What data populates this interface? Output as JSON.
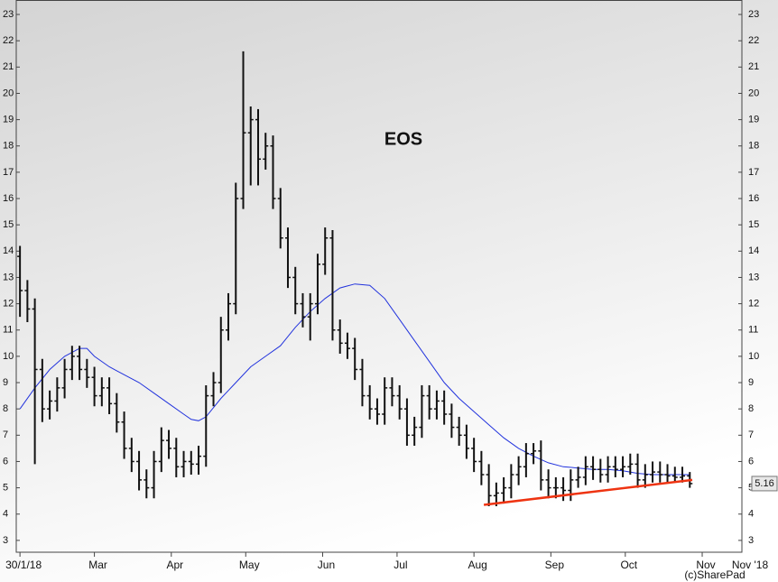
{
  "chart_data": {
    "type": "ohlc",
    "title": "EOS",
    "color": "#111111",
    "x": [
      0,
      3,
      6,
      9,
      12,
      15,
      18,
      21,
      24,
      27,
      30,
      33,
      36,
      39,
      42,
      45,
      48,
      51,
      54,
      57,
      60,
      63,
      66,
      69,
      72,
      75,
      78,
      81,
      84,
      87,
      90,
      93,
      96,
      99,
      102,
      105,
      108,
      111,
      114,
      117,
      120,
      123,
      126,
      129,
      132,
      135,
      138,
      141,
      144,
      147,
      150,
      153,
      156,
      159,
      162,
      165,
      168,
      171,
      174,
      177,
      180,
      183,
      186,
      189,
      192,
      195,
      198,
      201,
      204,
      207,
      210,
      213,
      216,
      219,
      222,
      225,
      228,
      231,
      234,
      237,
      240,
      243,
      246,
      249,
      252,
      255,
      258,
      261,
      264,
      267,
      270
    ],
    "open": [
      13.8,
      12.5,
      11.8,
      9.5,
      8,
      8.3,
      8.8,
      9.5,
      10,
      9.5,
      9.2,
      8.5,
      8.8,
      8.2,
      7.5,
      6.5,
      6,
      5.3,
      5,
      6,
      6.8,
      6.5,
      5.8,
      6,
      5.9,
      6.2,
      8.5,
      9,
      11,
      12,
      16,
      18.5,
      19,
      17.5,
      18,
      16,
      14.5,
      13,
      12,
      11.5,
      12,
      13.5,
      14.5,
      11,
      10.5,
      10.3,
      9.5,
      8.5,
      8,
      7.8,
      8.8,
      8.5,
      8,
      7,
      7.3,
      8.5,
      8,
      8.3,
      7.8,
      7.3,
      7,
      6.5,
      6,
      5.5,
      4.7,
      4.8,
      5,
      5.5,
      5.8,
      6.3,
      6.4,
      5.3,
      5,
      5,
      4.9,
      5.3,
      5.4,
      5.8,
      5.7,
      5.5,
      5.8,
      5.7,
      5.8,
      5.9,
      5.3,
      5.5,
      5.6,
      5.5,
      5.45,
      5.4,
      5.45
    ],
    "high": [
      14.2,
      12.9,
      12.2,
      9.9,
      8.7,
      9.2,
      9.9,
      10.4,
      10.4,
      9.9,
      9.6,
      9.2,
      9.2,
      8.6,
      7.9,
      6.9,
      6.4,
      5.7,
      6.4,
      7.3,
      7.2,
      6.9,
      6.4,
      6.4,
      6.6,
      8.9,
      9.4,
      11.5,
      12.4,
      16.6,
      21.6,
      19.5,
      19.4,
      18.5,
      18.4,
      16.4,
      14.9,
      13.4,
      12.4,
      12.4,
      13.9,
      14.9,
      14.8,
      11.4,
      10.9,
      10.7,
      9.9,
      8.9,
      8.4,
      9.2,
      9.2,
      8.9,
      8.4,
      7.7,
      8.9,
      8.9,
      8.7,
      8.7,
      8.2,
      7.7,
      7.4,
      6.9,
      6.4,
      5.9,
      5.2,
      5.4,
      5.9,
      6.2,
      6.7,
      6.7,
      6.8,
      5.7,
      5.4,
      5.4,
      5.7,
      5.8,
      6.2,
      6.2,
      6.1,
      6.2,
      6.2,
      6.2,
      6.3,
      6.3,
      5.9,
      6.0,
      6.0,
      5.9,
      5.8,
      5.8,
      5.6
    ],
    "low": [
      11.5,
      11.3,
      5.9,
      7.5,
      7.6,
      7.9,
      8.4,
      9.1,
      9.1,
      8.8,
      8.1,
      8.1,
      7.8,
      7.1,
      6.1,
      5.6,
      4.9,
      4.6,
      4.6,
      5.6,
      6.1,
      5.4,
      5.4,
      5.5,
      5.5,
      5.8,
      8.1,
      8.6,
      10.6,
      11.6,
      15.6,
      16.5,
      16.5,
      17.1,
      15.6,
      14.1,
      12.6,
      11.6,
      11.1,
      10.6,
      11.6,
      13.1,
      10.6,
      10.1,
      9.9,
      9.1,
      8.1,
      7.6,
      7.4,
      7.4,
      8.1,
      7.6,
      6.6,
      6.6,
      6.9,
      7.6,
      7.6,
      7.4,
      6.9,
      6.6,
      6.1,
      5.6,
      5.1,
      4.3,
      4.3,
      4.4,
      4.6,
      5.1,
      5.4,
      5.9,
      4.9,
      4.6,
      4.6,
      4.5,
      4.5,
      5.0,
      5.1,
      5.3,
      5.2,
      5.2,
      5.4,
      5.4,
      5.5,
      5.0,
      5.0,
      5.2,
      5.2,
      5.2,
      5.2,
      5.2,
      5.0
    ],
    "close": [
      12.5,
      11.8,
      9.5,
      8,
      8.3,
      8.8,
      9.5,
      10,
      9.5,
      9.2,
      8.5,
      8.8,
      8.2,
      7.5,
      6.5,
      6,
      5.3,
      5,
      6,
      6.8,
      6.5,
      5.8,
      6,
      5.9,
      6.2,
      8.5,
      9,
      11,
      12,
      16,
      18.5,
      19,
      17.5,
      18,
      16,
      14.5,
      13,
      12,
      11.5,
      12,
      13.5,
      14.5,
      11,
      10.5,
      10.3,
      9.5,
      8.5,
      8,
      7.8,
      8.8,
      8.5,
      8,
      7,
      7.3,
      8.5,
      8,
      8.3,
      7.8,
      7.3,
      7,
      6.5,
      6,
      5.5,
      4.7,
      4.8,
      5,
      5.5,
      5.8,
      6.3,
      6.4,
      5.3,
      5,
      5,
      4.9,
      5.3,
      5.4,
      5.8,
      5.7,
      5.5,
      5.8,
      5.7,
      5.8,
      5.9,
      5.3,
      5.5,
      5.6,
      5.5,
      5.45,
      5.4,
      5.45,
      5.16
    ],
    "moving_average": {
      "color": "#2233dd",
      "x": [
        0,
        6,
        12,
        18,
        24,
        27,
        30,
        36,
        42,
        48,
        54,
        60,
        66,
        69,
        72,
        75,
        81,
        87,
        93,
        99,
        105,
        111,
        117,
        123,
        129,
        135,
        141,
        147,
        153,
        159,
        165,
        171,
        177,
        183,
        189,
        195,
        201,
        207,
        213,
        219,
        225,
        231,
        237,
        243,
        249,
        255,
        261,
        267,
        270
      ],
      "values": [
        8,
        8.8,
        9.5,
        10,
        10.3,
        10.3,
        10,
        9.6,
        9.3,
        9,
        8.6,
        8.2,
        7.8,
        7.6,
        7.55,
        7.7,
        8.4,
        9,
        9.6,
        10,
        10.4,
        11.1,
        11.7,
        12.2,
        12.6,
        12.75,
        12.7,
        12.2,
        11.4,
        10.6,
        9.8,
        9.0,
        8.4,
        7.9,
        7.4,
        6.9,
        6.5,
        6.2,
        5.95,
        5.8,
        5.75,
        5.7,
        5.7,
        5.65,
        5.55,
        5.5,
        5.5,
        5.5,
        5.5
      ]
    },
    "trendline": {
      "color": "#ee3311",
      "x": [
        187,
        271
      ],
      "values": [
        4.35,
        5.3
      ]
    },
    "xlim": [
      -1.5,
      291
    ],
    "ylim": [
      2.55,
      23.55
    ],
    "yticks": [
      3,
      4,
      5,
      6,
      7,
      8,
      9,
      10,
      11,
      12,
      13,
      14,
      15,
      16,
      17,
      18,
      19,
      20,
      21,
      22,
      23
    ],
    "xticks": [
      {
        "value": 0,
        "label": "30/1/18"
      },
      {
        "value": 30,
        "label": "Mar"
      },
      {
        "value": 61,
        "label": "Apr"
      },
      {
        "value": 91,
        "label": "May"
      },
      {
        "value": 122,
        "label": "Jun"
      },
      {
        "value": 152,
        "label": "Jul"
      },
      {
        "value": 183,
        "label": "Aug"
      },
      {
        "value": 214,
        "label": "Sep"
      },
      {
        "value": 244,
        "label": "Oct"
      },
      {
        "value": 275,
        "label": "Nov"
      }
    ],
    "x_end_label": "Nov '18",
    "credit": "(c)SharePad",
    "grid": false
  }
}
